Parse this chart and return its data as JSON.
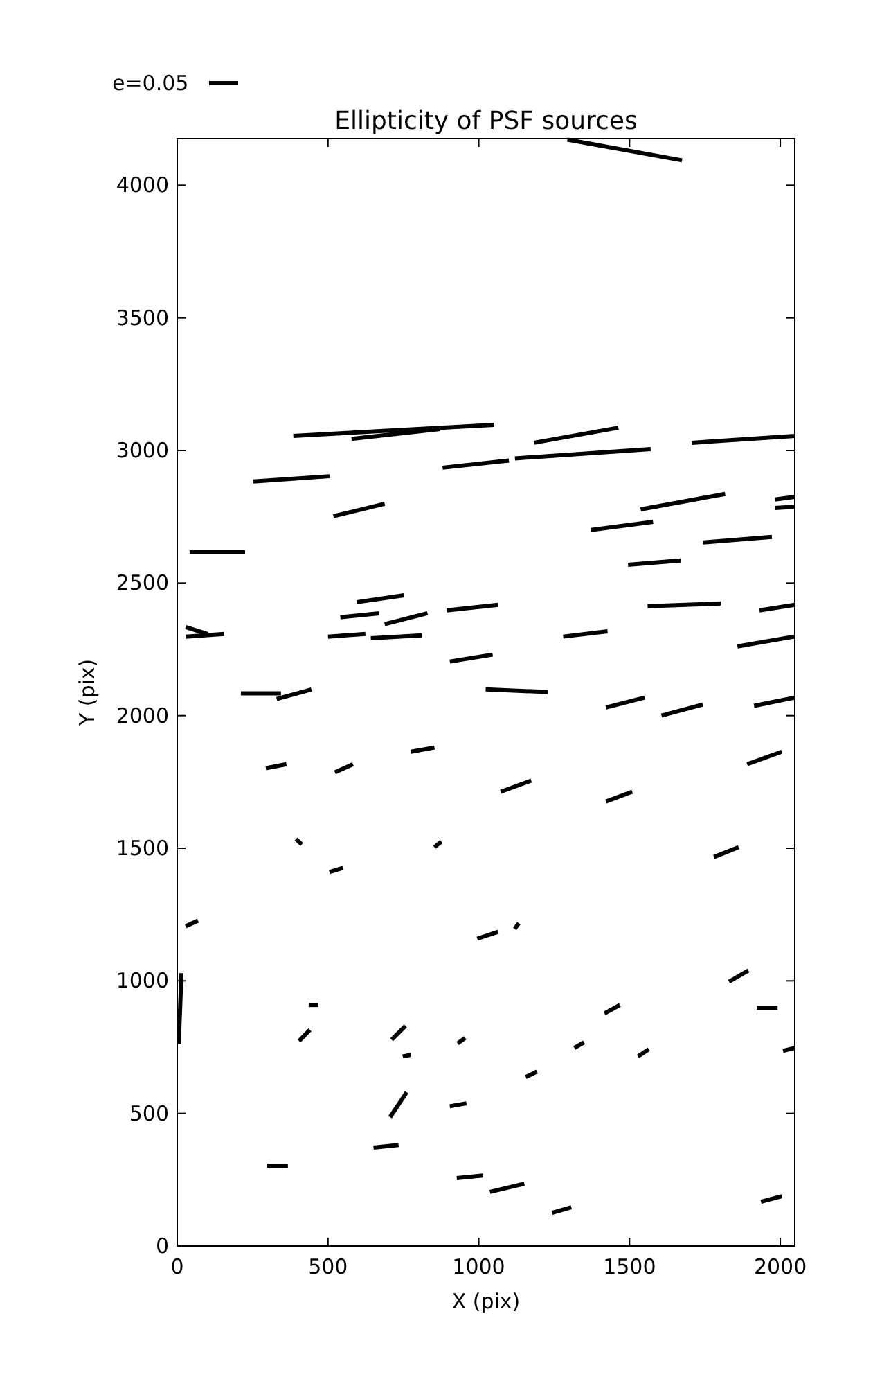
{
  "chart_data": {
    "type": "line",
    "title": "Ellipticity of PSF sources",
    "xlabel": "X (pix)",
    "ylabel": "Y (pix)",
    "annotations": [
      "e=0.05"
    ],
    "xlim": [
      0,
      2048
    ],
    "ylim": [
      0,
      4176
    ],
    "xticks": [
      0,
      500,
      1000,
      1500,
      2000
    ],
    "yticks": [
      0,
      500,
      1000,
      1500,
      2000,
      2500,
      3000,
      3500,
      4000
    ],
    "grid": false,
    "marker": "none",
    "line_style": "solid",
    "series": [
      {
        "color": "#000000",
        "x": [
          1294,
          1674
        ],
        "values": [
          4172,
          4094
        ]
      },
      {
        "color": "#000000",
        "x": [
          385,
          1050
        ],
        "values": [
          3055,
          3097
        ]
      },
      {
        "color": "#000000",
        "x": [
          578,
          872
        ],
        "values": [
          3044,
          3081
        ]
      },
      {
        "color": "#000000",
        "x": [
          252,
          505
        ],
        "values": [
          2883,
          2903
        ]
      },
      {
        "color": "#000000",
        "x": [
          880,
          1100
        ],
        "values": [
          2935,
          2962
        ]
      },
      {
        "color": "#000000",
        "x": [
          1120,
          1570
        ],
        "values": [
          2970,
          3005
        ]
      },
      {
        "color": "#000000",
        "x": [
          1183,
          1463
        ],
        "values": [
          3029,
          3086
        ]
      },
      {
        "color": "#000000",
        "x": [
          1706,
          2048
        ],
        "values": [
          3029,
          3055
        ]
      },
      {
        "color": "#000000",
        "x": [
          1537,
          1817
        ],
        "values": [
          2778,
          2836
        ]
      },
      {
        "color": "#000000",
        "x": [
          1982,
          2048
        ],
        "values": [
          2815,
          2825
        ]
      },
      {
        "color": "#000000",
        "x": [
          1982,
          2048
        ],
        "values": [
          2783,
          2788
        ]
      },
      {
        "color": "#000000",
        "x": [
          518,
          688
        ],
        "values": [
          2752,
          2799
        ]
      },
      {
        "color": "#000000",
        "x": [
          41,
          225
        ],
        "values": [
          2616,
          2616
        ]
      },
      {
        "color": "#000000",
        "x": [
          596,
          752
        ],
        "values": [
          2428,
          2454
        ]
      },
      {
        "color": "#000000",
        "x": [
          541,
          670
        ],
        "values": [
          2371,
          2386
        ]
      },
      {
        "color": "#000000",
        "x": [
          688,
          830
        ],
        "values": [
          2345,
          2386
        ]
      },
      {
        "color": "#000000",
        "x": [
          500,
          624
        ],
        "values": [
          2298,
          2308
        ]
      },
      {
        "color": "#000000",
        "x": [
          642,
          812
        ],
        "values": [
          2292,
          2303
        ]
      },
      {
        "color": "#000000",
        "x": [
          894,
          1064
        ],
        "values": [
          2397,
          2418
        ]
      },
      {
        "color": "#000000",
        "x": [
          904,
          1046
        ],
        "values": [
          2204,
          2230
        ]
      },
      {
        "color": "#000000",
        "x": [
          28,
          156
        ],
        "values": [
          2298,
          2308
        ]
      },
      {
        "color": "#000000",
        "x": [
          28,
          101
        ],
        "values": [
          2334,
          2308
        ]
      },
      {
        "color": "#000000",
        "x": [
          211,
          344
        ],
        "values": [
          2084,
          2084
        ]
      },
      {
        "color": "#000000",
        "x": [
          330,
          445
        ],
        "values": [
          2063,
          2099
        ]
      },
      {
        "color": "#000000",
        "x": [
          294,
          362
        ],
        "values": [
          1802,
          1817
        ]
      },
      {
        "color": "#000000",
        "x": [
          523,
          583
        ],
        "values": [
          1786,
          1817
        ]
      },
      {
        "color": "#000000",
        "x": [
          775,
          853
        ],
        "values": [
          1864,
          1880
        ]
      },
      {
        "color": "#000000",
        "x": [
          394,
          413
        ],
        "values": [
          1535,
          1514
        ]
      },
      {
        "color": "#000000",
        "x": [
          853,
          876
        ],
        "values": [
          1504,
          1525
        ]
      },
      {
        "color": "#000000",
        "x": [
          505,
          550
        ],
        "values": [
          1410,
          1426
        ]
      },
      {
        "color": "#000000",
        "x": [
          1372,
          1578
        ],
        "values": [
          2700,
          2731
        ]
      },
      {
        "color": "#000000",
        "x": [
          1743,
          1972
        ],
        "values": [
          2653,
          2674
        ]
      },
      {
        "color": "#000000",
        "x": [
          1495,
          1670
        ],
        "values": [
          2569,
          2585
        ]
      },
      {
        "color": "#000000",
        "x": [
          1560,
          1803
        ],
        "values": [
          2413,
          2423
        ]
      },
      {
        "color": "#000000",
        "x": [
          1931,
          2048
        ],
        "values": [
          2397,
          2418
        ]
      },
      {
        "color": "#000000",
        "x": [
          1858,
          2046
        ],
        "values": [
          2261,
          2298
        ]
      },
      {
        "color": "#000000",
        "x": [
          1280,
          1427
        ],
        "values": [
          2298,
          2318
        ]
      },
      {
        "color": "#000000",
        "x": [
          1023,
          1229
        ],
        "values": [
          2099,
          2089
        ]
      },
      {
        "color": "#000000",
        "x": [
          1422,
          1550
        ],
        "values": [
          2031,
          2068
        ]
      },
      {
        "color": "#000000",
        "x": [
          1606,
          1743
        ],
        "values": [
          2000,
          2042
        ]
      },
      {
        "color": "#000000",
        "x": [
          1913,
          2048
        ],
        "values": [
          2037,
          2068
        ]
      },
      {
        "color": "#000000",
        "x": [
          1890,
          2005
        ],
        "values": [
          1817,
          1864
        ]
      },
      {
        "color": "#000000",
        "x": [
          1073,
          1174
        ],
        "values": [
          1713,
          1755
        ]
      },
      {
        "color": "#000000",
        "x": [
          1422,
          1509
        ],
        "values": [
          1676,
          1713
        ]
      },
      {
        "color": "#000000",
        "x": [
          1780,
          1862
        ],
        "values": [
          1467,
          1504
        ]
      },
      {
        "color": "#000000",
        "x": [
          28,
          69
        ],
        "values": [
          1206,
          1227
        ]
      },
      {
        "color": "#000000",
        "x": [
          5,
          14
        ],
        "values": [
          762,
          1029
        ]
      },
      {
        "color": "#000000",
        "x": [
          436,
          468
        ],
        "values": [
          909,
          909
        ]
      },
      {
        "color": "#000000",
        "x": [
          404,
          440
        ],
        "values": [
          773,
          815
        ]
      },
      {
        "color": "#000000",
        "x": [
          711,
          757
        ],
        "values": [
          778,
          830
        ]
      },
      {
        "color": "#000000",
        "x": [
          748,
          775
        ],
        "values": [
          715,
          721
        ]
      },
      {
        "color": "#000000",
        "x": [
          706,
          761
        ],
        "values": [
          486,
          580
        ]
      },
      {
        "color": "#000000",
        "x": [
          298,
          367
        ],
        "values": [
          303,
          303
        ]
      },
      {
        "color": "#000000",
        "x": [
          651,
          734
        ],
        "values": [
          371,
          381
        ]
      },
      {
        "color": "#000000",
        "x": [
          904,
          959
        ],
        "values": [
          527,
          538
        ]
      },
      {
        "color": "#000000",
        "x": [
          927,
          1014
        ],
        "values": [
          256,
          266
        ]
      },
      {
        "color": "#000000",
        "x": [
          930,
          955
        ],
        "values": [
          764,
          785
        ]
      },
      {
        "color": "#000000",
        "x": [
          995,
          1064
        ],
        "values": [
          1159,
          1185
        ]
      },
      {
        "color": "#000000",
        "x": [
          1119,
          1133
        ],
        "values": [
          1196,
          1217
        ]
      },
      {
        "color": "#000000",
        "x": [
          1830,
          1894
        ],
        "values": [
          997,
          1039
        ]
      },
      {
        "color": "#000000",
        "x": [
          1922,
          1991
        ],
        "values": [
          898,
          898
        ]
      },
      {
        "color": "#000000",
        "x": [
          2009,
          2048
        ],
        "values": [
          736,
          747
        ]
      },
      {
        "color": "#000000",
        "x": [
          1417,
          1468
        ],
        "values": [
          877,
          909
        ]
      },
      {
        "color": "#000000",
        "x": [
          1317,
          1349
        ],
        "values": [
          747,
          768
        ]
      },
      {
        "color": "#000000",
        "x": [
          1528,
          1564
        ],
        "values": [
          715,
          742
        ]
      },
      {
        "color": "#000000",
        "x": [
          1156,
          1193
        ],
        "values": [
          637,
          658
        ]
      },
      {
        "color": "#000000",
        "x": [
          1037,
          1151
        ],
        "values": [
          204,
          235
        ]
      },
      {
        "color": "#000000",
        "x": [
          1243,
          1307
        ],
        "values": [
          125,
          146
        ]
      },
      {
        "color": "#000000",
        "x": [
          1936,
          2005
        ],
        "values": [
          167,
          188
        ]
      }
    ]
  }
}
